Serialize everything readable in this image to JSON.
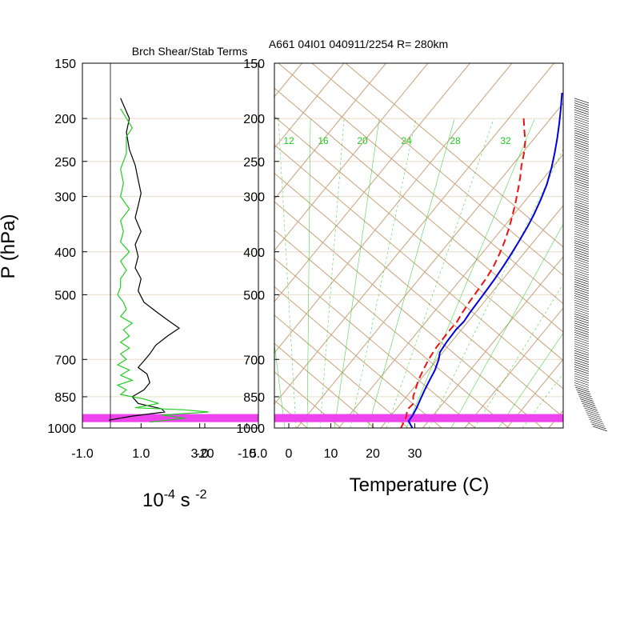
{
  "left_panel": {
    "title": "Brch Shear/Stab Terms",
    "xlabel_base": "10",
    "xlabel_exp1": "-4",
    "xlabel_mid": " s ",
    "xlabel_exp2": "-2",
    "ylabel": "P (hPa)"
  },
  "right_panel": {
    "title": "A661 04I01 040911/2254 R= 280km",
    "xlabel": "Temperature (C)"
  },
  "colors": {
    "isotherm": "#c8a27a",
    "mixing_ratio": "#22cc22",
    "temperature": "#0000dd",
    "dewpoint": "#ee1111",
    "highlight": "#ee44ee",
    "stab": "#000000",
    "shear": "#22cc22"
  },
  "chart_data": [
    {
      "type": "line",
      "title": "Brch Shear/Stab Terms",
      "ylabel": "P (hPa)",
      "yscale": "log",
      "ylim": [
        1000,
        150
      ],
      "xlim": [
        -1.0,
        5.0
      ],
      "x_ticks": [
        "-1.0",
        "1.0",
        "3.0",
        "5.0"
      ],
      "p_ticks": [
        150,
        200,
        250,
        300,
        400,
        500,
        700,
        850,
        1000
      ],
      "highlight_band_hPa": [
        930,
        970
      ],
      "series": [
        {
          "color": "stab",
          "points": [
            [
              0.3,
              180
            ],
            [
              0.6,
              200
            ],
            [
              0.5,
              215
            ],
            [
              0.6,
              235
            ],
            [
              0.8,
              255
            ],
            [
              0.9,
              275
            ],
            [
              1.0,
              295
            ],
            [
              0.9,
              315
            ],
            [
              0.8,
              335
            ],
            [
              1.0,
              360
            ],
            [
              0.8,
              385
            ],
            [
              0.9,
              410
            ],
            [
              0.8,
              435
            ],
            [
              1.0,
              460
            ],
            [
              0.9,
              490
            ],
            [
              1.1,
              520
            ],
            [
              1.5,
              545
            ],
            [
              1.9,
              570
            ],
            [
              2.3,
              595
            ],
            [
              1.9,
              620
            ],
            [
              1.5,
              650
            ],
            [
              1.3,
              680
            ],
            [
              1.1,
              705
            ],
            [
              0.9,
              730
            ],
            [
              1.2,
              755
            ],
            [
              1.3,
              790
            ],
            [
              1.1,
              820
            ],
            [
              0.7,
              850
            ],
            [
              0.9,
              880
            ],
            [
              1.7,
              905
            ],
            [
              1.8,
              920
            ],
            [
              0.7,
              940
            ],
            [
              -0.1,
              960
            ]
          ]
        },
        {
          "color": "shear",
          "points": [
            [
              0.3,
              190
            ],
            [
              0.7,
              210
            ],
            [
              0.5,
              220
            ],
            [
              0.5,
              240
            ],
            [
              0.3,
              260
            ],
            [
              0.4,
              280
            ],
            [
              0.3,
              300
            ],
            [
              0.6,
              320
            ],
            [
              0.3,
              340
            ],
            [
              0.4,
              360
            ],
            [
              0.3,
              380
            ],
            [
              0.6,
              400
            ],
            [
              0.3,
              420
            ],
            [
              0.5,
              440
            ],
            [
              0.3,
              460
            ],
            [
              0.3,
              480
            ],
            [
              0.2,
              500
            ],
            [
              0.4,
              520
            ],
            [
              0.5,
              540
            ],
            [
              0.3,
              560
            ],
            [
              0.7,
              580
            ],
            [
              0.4,
              600
            ],
            [
              0.6,
              620
            ],
            [
              0.3,
              640
            ],
            [
              0.6,
              660
            ],
            [
              0.3,
              680
            ],
            [
              0.5,
              700
            ],
            [
              0.2,
              720
            ],
            [
              0.6,
              740
            ],
            [
              0.3,
              760
            ],
            [
              0.7,
              780
            ],
            [
              0.2,
              800
            ],
            [
              0.5,
              820
            ],
            [
              0.3,
              840
            ],
            [
              1.1,
              860
            ],
            [
              1.6,
              880
            ],
            [
              0.8,
              900
            ],
            [
              2.5,
              910
            ],
            [
              3.3,
              920
            ],
            [
              1.7,
              935
            ],
            [
              2.5,
              950
            ],
            [
              1.3,
              970
            ]
          ]
        }
      ]
    },
    {
      "type": "line",
      "title": "A661 04I01 040911/2254 R= 280km",
      "xlabel": "Temperature (C)",
      "yscale": "log",
      "ylim": [
        1000,
        150
      ],
      "xlim": [
        -25,
        40
      ],
      "x_ticks": [
        -20,
        -10,
        0,
        10,
        20,
        30
      ],
      "p_ticks": [
        150,
        200,
        250,
        300,
        400,
        500,
        700,
        850,
        1000
      ],
      "mixing_ratio_labels": [
        "12",
        "16",
        "20",
        "24",
        "28",
        "32"
      ],
      "series": [
        {
          "name": "",
          "color": "temperature",
          "points": [
            [
              -2.3,
              175
            ],
            [
              0.5,
              190
            ],
            [
              3.0,
              205
            ],
            [
              5.5,
              222
            ],
            [
              7.8,
              240
            ],
            [
              9.8,
              258
            ],
            [
              12.0,
              282
            ],
            [
              13.5,
              305
            ],
            [
              14.8,
              330
            ],
            [
              15.6,
              350
            ],
            [
              16.5,
              380
            ],
            [
              17.1,
              405
            ],
            [
              17.6,
              430
            ],
            [
              18.0,
              460
            ],
            [
              18.3,
              490
            ],
            [
              18.5,
              520
            ],
            [
              18.7,
              550
            ],
            [
              19.0,
              575
            ],
            [
              18.7,
              600
            ],
            [
              18.9,
              640
            ],
            [
              19.3,
              675
            ],
            [
              20.4,
              700
            ],
            [
              21.6,
              740
            ],
            [
              22.3,
              780
            ],
            [
              23.0,
              820
            ],
            [
              23.8,
              860
            ],
            [
              24.6,
              900
            ],
            [
              25.1,
              935
            ],
            [
              25.3,
              965
            ],
            [
              27.5,
              1000
            ]
          ]
        },
        {
          "name": "",
          "color": "dewpoint",
          "points": [
            [
              -6.4,
              200
            ],
            [
              -3.5,
              215
            ],
            [
              -1.6,
              225
            ],
            [
              0.5,
              240
            ],
            [
              2.2,
              255
            ],
            [
              4.3,
              272
            ],
            [
              6.4,
              292
            ],
            [
              8.3,
              312
            ],
            [
              10.0,
              333
            ],
            [
              11.6,
              355
            ],
            [
              13.0,
              378
            ],
            [
              14.3,
              405
            ],
            [
              15.3,
              432
            ],
            [
              15.9,
              460
            ],
            [
              16.2,
              490
            ],
            [
              16.5,
              520
            ],
            [
              16.9,
              550
            ],
            [
              17.4,
              575
            ],
            [
              17.3,
              600
            ],
            [
              17.4,
              630
            ],
            [
              17.5,
              660
            ],
            [
              18.0,
              700
            ],
            [
              18.8,
              740
            ],
            [
              19.6,
              780
            ],
            [
              20.5,
              810
            ],
            [
              21.6,
              850
            ],
            [
              23.0,
              880
            ],
            [
              22.7,
              910
            ],
            [
              23.8,
              940
            ],
            [
              24.3,
              970
            ],
            [
              24.8,
              1000
            ]
          ]
        }
      ]
    }
  ]
}
